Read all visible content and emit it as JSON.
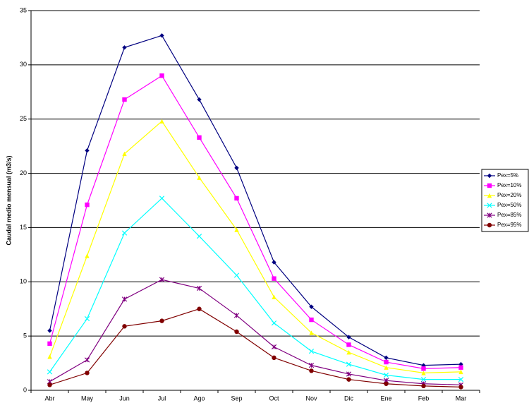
{
  "chart_data": {
    "type": "line",
    "y_label": "Caudal medio mensual (m3/s)",
    "categories": [
      "Abr",
      "May",
      "Jun",
      "Jul",
      "Ago",
      "Sep",
      "Oct",
      "Nov",
      "Dic",
      "Ene",
      "Feb",
      "Mar"
    ],
    "series": [
      {
        "name": "Pex=5%",
        "color": "#000080",
        "marker": "diamond",
        "values": [
          5.5,
          22.1,
          31.6,
          32.7,
          26.8,
          20.5,
          11.8,
          7.7,
          4.9,
          3.0,
          2.3,
          2.4
        ]
      },
      {
        "name": "Pex=10%",
        "color": "#ff00ff",
        "marker": "square",
        "values": [
          4.3,
          17.1,
          26.8,
          29.0,
          23.3,
          17.7,
          10.3,
          6.5,
          4.2,
          2.6,
          2.0,
          2.1
        ]
      },
      {
        "name": "Pex=20%",
        "color": "#ffff00",
        "marker": "triangle",
        "values": [
          3.1,
          12.4,
          21.8,
          24.8,
          19.6,
          14.8,
          8.6,
          5.3,
          3.5,
          2.1,
          1.6,
          1.7
        ]
      },
      {
        "name": "Pex=50%",
        "color": "#00ffff",
        "marker": "x",
        "values": [
          1.7,
          6.6,
          14.5,
          17.7,
          14.2,
          10.6,
          6.2,
          3.6,
          2.4,
          1.4,
          1.0,
          1.0
        ]
      },
      {
        "name": "Pex=85%",
        "color": "#800080",
        "marker": "star",
        "values": [
          0.8,
          2.8,
          8.4,
          10.2,
          9.4,
          6.9,
          4.0,
          2.3,
          1.5,
          0.9,
          0.6,
          0.5
        ]
      },
      {
        "name": "Pex=95%",
        "color": "#800000",
        "marker": "circle",
        "values": [
          0.5,
          1.6,
          5.9,
          6.4,
          7.5,
          5.4,
          3.0,
          1.8,
          1.0,
          0.6,
          0.4,
          0.3
        ]
      }
    ],
    "ylim": [
      0,
      35
    ],
    "yticks": [
      0,
      5,
      10,
      15,
      20,
      25,
      30,
      35
    ],
    "grid": true,
    "legend": "right"
  }
}
